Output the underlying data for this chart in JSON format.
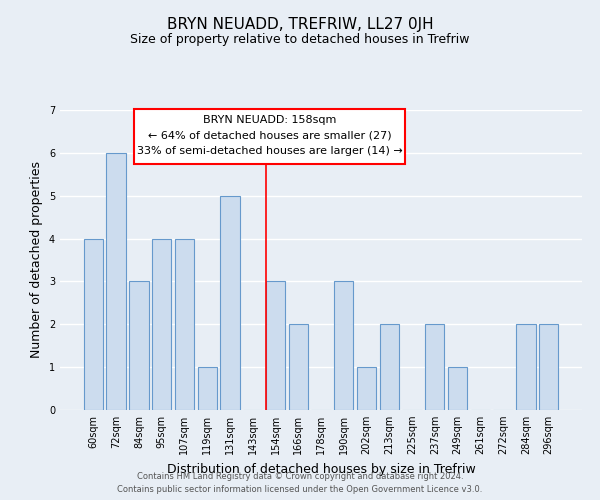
{
  "title": "BRYN NEUADD, TREFRIW, LL27 0JH",
  "subtitle": "Size of property relative to detached houses in Trefriw",
  "xlabel": "Distribution of detached houses by size in Trefriw",
  "ylabel": "Number of detached properties",
  "categories": [
    "60sqm",
    "72sqm",
    "84sqm",
    "95sqm",
    "107sqm",
    "119sqm",
    "131sqm",
    "143sqm",
    "154sqm",
    "166sqm",
    "178sqm",
    "190sqm",
    "202sqm",
    "213sqm",
    "225sqm",
    "237sqm",
    "249sqm",
    "261sqm",
    "272sqm",
    "284sqm",
    "296sqm"
  ],
  "values": [
    4,
    6,
    3,
    4,
    4,
    1,
    5,
    0,
    3,
    2,
    0,
    3,
    1,
    2,
    0,
    2,
    1,
    0,
    0,
    2,
    2
  ],
  "bar_color": "#ccdcee",
  "bar_edge_color": "#6699cc",
  "red_line_index": 8,
  "ylim": [
    0,
    7
  ],
  "yticks": [
    0,
    1,
    2,
    3,
    4,
    5,
    6,
    7
  ],
  "annotation_title": "BRYN NEUADD: 158sqm",
  "annotation_line1": "← 64% of detached houses are smaller (27)",
  "annotation_line2": "33% of semi-detached houses are larger (14) →",
  "footer1": "Contains HM Land Registry data © Crown copyright and database right 2024.",
  "footer2": "Contains public sector information licensed under the Open Government Licence v3.0.",
  "fig_background_color": "#e8eef5",
  "plot_background_color": "#e8eef5",
  "grid_color": "#ffffff",
  "title_fontsize": 11,
  "subtitle_fontsize": 9,
  "axis_label_fontsize": 9,
  "tick_fontsize": 7,
  "footer_fontsize": 6,
  "annotation_fontsize": 8
}
